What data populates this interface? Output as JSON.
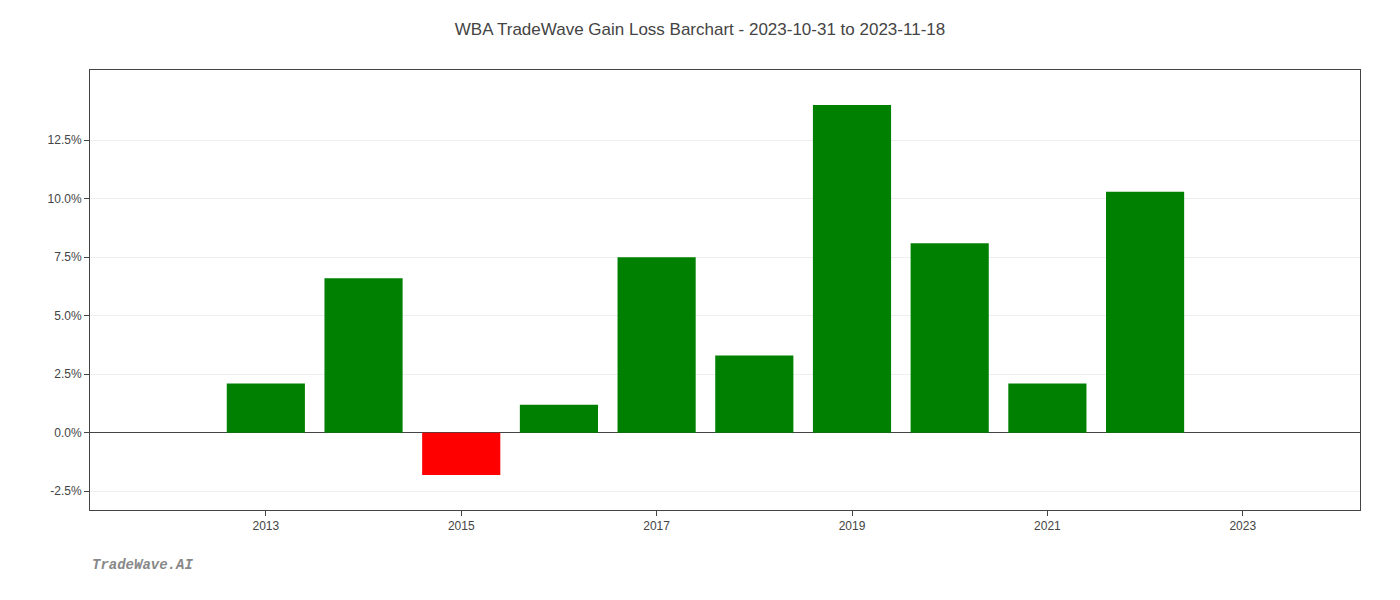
{
  "chart_data": {
    "type": "bar",
    "title": "WBA TradeWave Gain Loss Barchart - 2023-10-31 to 2023-11-18",
    "annotations": [
      "TradeWave.AI"
    ],
    "x": [
      2013,
      2014,
      2015,
      2016,
      2017,
      2018,
      2019,
      2020,
      2021,
      2022
    ],
    "values": [
      0.021,
      0.066,
      -0.018,
      0.012,
      0.075,
      0.033,
      0.14,
      0.081,
      0.021,
      0.103
    ],
    "colors": [
      "#008000",
      "#008000",
      "#ff0000",
      "#008000",
      "#008000",
      "#008000",
      "#008000",
      "#008000",
      "#008000",
      "#008000"
    ],
    "xlim": [
      2011.2,
      2024.2
    ],
    "xticks": [
      2013,
      2015,
      2017,
      2019,
      2021,
      2023
    ],
    "ylim": [
      -0.033,
      0.155
    ],
    "yticks": [
      {
        "value": -0.025,
        "label": "-2.5%"
      },
      {
        "value": 0.0,
        "label": "0.0%"
      },
      {
        "value": 0.025,
        "label": "2.5%"
      },
      {
        "value": 0.05,
        "label": "5.0%"
      },
      {
        "value": 0.075,
        "label": "7.5%"
      },
      {
        "value": 0.1,
        "label": "10.0%"
      },
      {
        "value": 0.125,
        "label": "12.5%"
      }
    ],
    "grid": "y"
  }
}
